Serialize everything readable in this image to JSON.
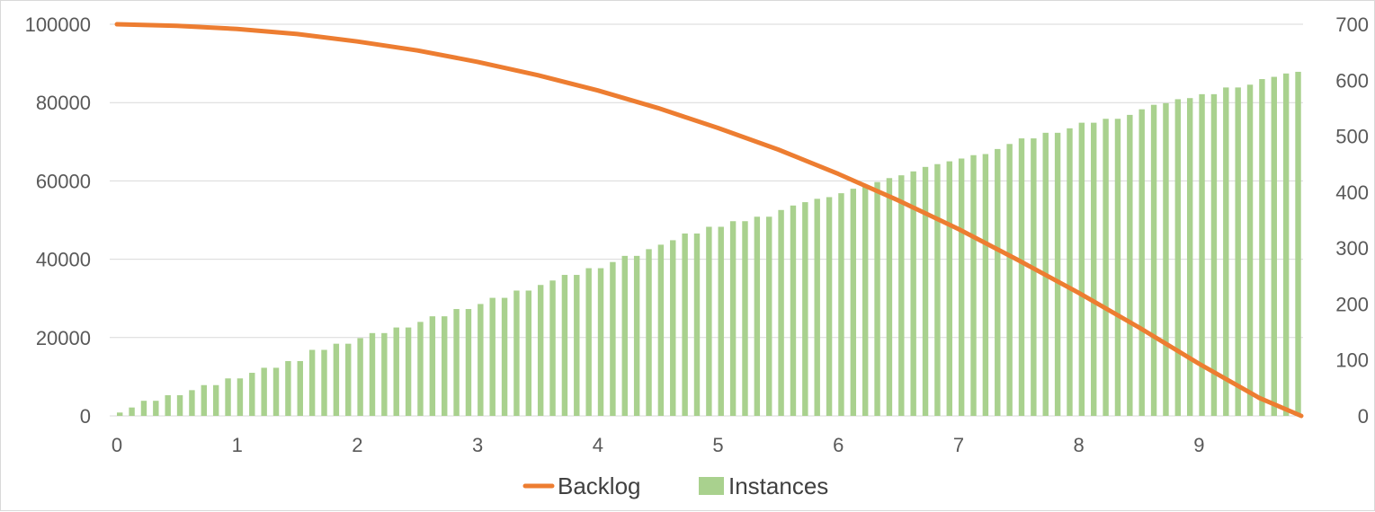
{
  "chart_data": {
    "type": "bar+line",
    "title": "",
    "xlabel": "",
    "ylabel": "",
    "x_range": [
      0,
      9.85
    ],
    "x_ticks": [
      0,
      1,
      2,
      3,
      4,
      5,
      6,
      7,
      8,
      9
    ],
    "y_left": {
      "range": [
        0,
        100000
      ],
      "ticks": [
        0,
        20000,
        40000,
        60000,
        80000,
        100000
      ]
    },
    "y_right": {
      "range": [
        0,
        700
      ],
      "ticks": [
        0,
        100,
        200,
        300,
        400,
        500,
        600,
        700
      ]
    },
    "grid": "horizontal",
    "legend_position": "bottom",
    "series": [
      {
        "name": "Backlog",
        "kind": "line",
        "axis": "left",
        "color": "#ED7D31",
        "x": [
          0,
          0.5,
          1,
          1.5,
          2,
          2.5,
          3,
          3.5,
          4,
          4.5,
          5,
          5.5,
          6,
          6.5,
          7,
          7.5,
          8,
          8.5,
          9,
          9.5,
          9.85
        ],
        "values": [
          100000,
          99600,
          98800,
          97500,
          95600,
          93300,
          90400,
          87000,
          83100,
          78600,
          73500,
          68000,
          61800,
          55000,
          47700,
          39700,
          31400,
          22600,
          13300,
          4600,
          0
        ]
      },
      {
        "name": "Instances",
        "kind": "bar",
        "axis": "right",
        "color": "#A9D18E",
        "x_start": 0.0,
        "x_step": 0.1,
        "values": [
          6,
          15,
          27,
          27,
          37,
          37,
          46,
          55,
          55,
          67,
          67,
          77,
          86,
          86,
          98,
          98,
          118,
          118,
          129,
          129,
          139,
          148,
          148,
          158,
          158,
          168,
          178,
          178,
          191,
          191,
          200,
          211,
          211,
          224,
          224,
          234,
          242,
          252,
          252,
          264,
          264,
          275,
          286,
          286,
          298,
          306,
          314,
          326,
          326,
          338,
          338,
          348,
          348,
          356,
          356,
          368,
          376,
          382,
          388,
          391,
          398,
          406,
          413,
          418,
          425,
          430,
          437,
          445,
          450,
          455,
          460,
          466,
          468,
          477,
          486,
          496,
          496,
          506,
          506,
          514,
          524,
          524,
          531,
          531,
          538,
          548,
          556,
          559,
          566,
          568,
          575,
          575,
          587,
          587,
          592,
          602,
          606,
          612,
          615
        ]
      }
    ]
  },
  "colors": {
    "grid": "#d9d9d9",
    "tick_text": "#595959",
    "legend_text": "#404040"
  }
}
